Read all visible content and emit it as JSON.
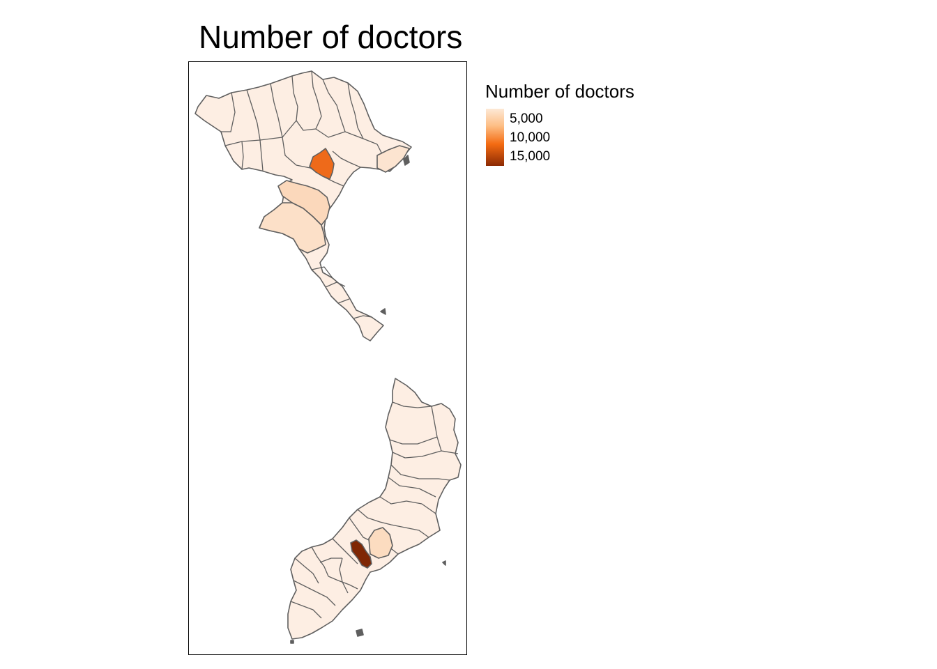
{
  "title": "Number of doctors",
  "legend": {
    "title": "Number of doctors",
    "labels": [
      "5,000",
      "10,000",
      "15,000"
    ]
  },
  "colors": {
    "lowest": "#fdeee3",
    "low": "#fde6d4",
    "mid": "#fbd0ad",
    "high": "#ee6a1a",
    "highest": "#7f2704",
    "outline": "#5f5f5f"
  }
}
